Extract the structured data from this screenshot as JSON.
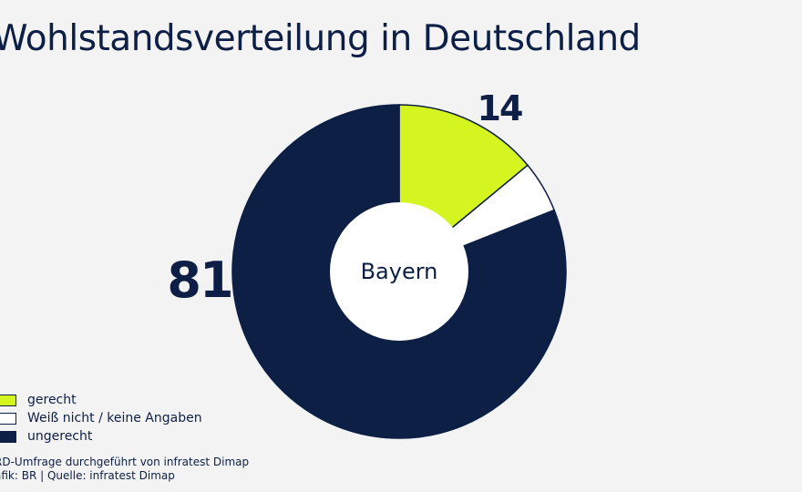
{
  "header": {
    "title": "Wohlstandsverteilung in Deutschland"
  },
  "chart_data": {
    "type": "pie",
    "center_label": "Bayern",
    "slices": [
      {
        "label": "gerecht",
        "value": 14,
        "data_label": "14",
        "color": "#d5f521"
      },
      {
        "label": "Weiß nicht / keine Angaben",
        "value": 5,
        "data_label": "",
        "color": "#ffffff"
      },
      {
        "label": "ungerecht",
        "value": 81,
        "data_label": "81",
        "color": "#0d1f45"
      }
    ],
    "legend_position": "bottom-left"
  },
  "legend": {
    "items": [
      {
        "label": "gerecht",
        "color": "#d5f521"
      },
      {
        "label": "Weiß nicht / keine Angaben",
        "color": "#ffffff"
      },
      {
        "label": "ungerecht",
        "color": "#0d1f45"
      }
    ]
  },
  "footer": {
    "source_line_1": "RD-Umfrage durchgeführt von infratest Dimap",
    "source_line_2": "afik: BR | Quelle: infratest Dimap"
  }
}
